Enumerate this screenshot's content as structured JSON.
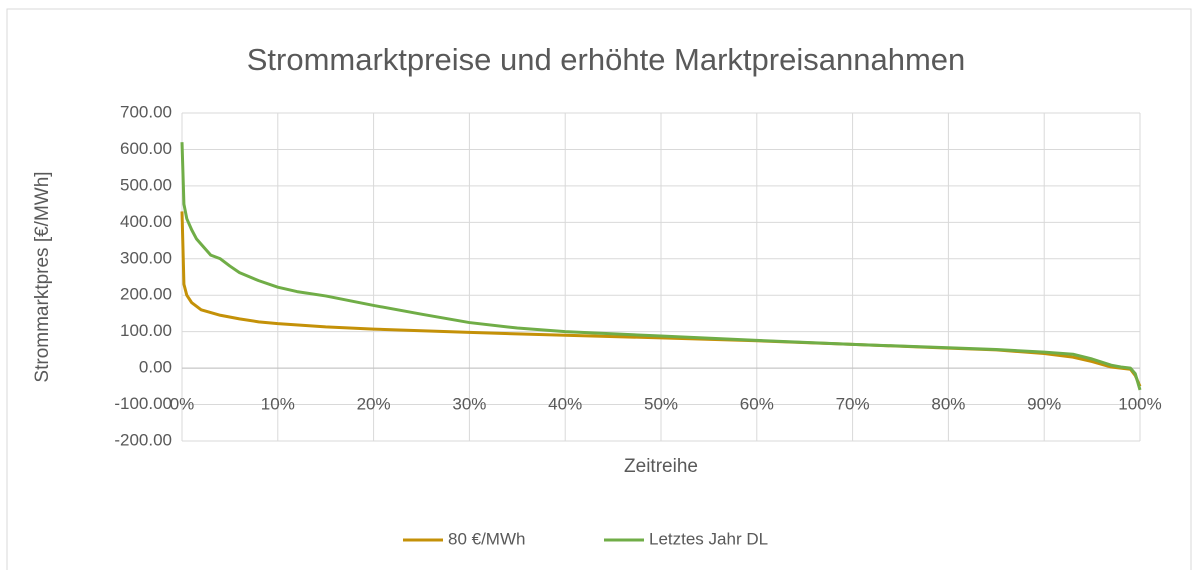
{
  "chart_data": {
    "type": "line",
    "title": "Strommarktpreise und erhöhte Marktpreisannahmen",
    "x_label": "Zeitreihe",
    "y_label": "Strommarktpres [€/MWh]",
    "xlim": [
      0,
      100
    ],
    "xticks": [
      {
        "value": 0,
        "label": "0%"
      },
      {
        "value": 10,
        "label": "10%"
      },
      {
        "value": 20,
        "label": "20%"
      },
      {
        "value": 30,
        "label": "30%"
      },
      {
        "value": 40,
        "label": "40%"
      },
      {
        "value": 50,
        "label": "50%"
      },
      {
        "value": 60,
        "label": "60%"
      },
      {
        "value": 70,
        "label": "70%"
      },
      {
        "value": 80,
        "label": "80%"
      },
      {
        "value": 90,
        "label": "90%"
      },
      {
        "value": 100,
        "label": "100%"
      }
    ],
    "ylim": [
      -200,
      700
    ],
    "yticks": [
      {
        "value": -200,
        "label": "-200.00"
      },
      {
        "value": -100,
        "label": "-100.00"
      },
      {
        "value": 0,
        "label": "0.00"
      },
      {
        "value": 100,
        "label": "100.00"
      },
      {
        "value": 200,
        "label": "200.00"
      },
      {
        "value": 300,
        "label": "300.00"
      },
      {
        "value": 400,
        "label": "400.00"
      },
      {
        "value": 500,
        "label": "500.00"
      },
      {
        "value": 600,
        "label": "600.00"
      },
      {
        "value": 700,
        "label": "700.00"
      }
    ],
    "grid": true,
    "legend": "bottom",
    "series": [
      {
        "name": "80 €/MWh",
        "color": "#c49108",
        "x": [
          0,
          0.2,
          0.5,
          1,
          2,
          4,
          6,
          8,
          10,
          15,
          20,
          30,
          40,
          50,
          60,
          70,
          80,
          85,
          90,
          93,
          95,
          97,
          98,
          99,
          99.5,
          100
        ],
        "values": [
          430,
          230,
          200,
          180,
          160,
          145,
          135,
          127,
          122,
          113,
          107,
          98,
          90,
          83,
          75,
          65,
          55,
          50,
          40,
          30,
          18,
          3,
          0,
          -3,
          -20,
          -50
        ]
      },
      {
        "name": "Letztes Jahr DL",
        "color": "#70ad47",
        "x": [
          0,
          0.2,
          0.5,
          1,
          1.5,
          2,
          3,
          4,
          5,
          6,
          8,
          10,
          12,
          15,
          20,
          25,
          30,
          35,
          40,
          50,
          60,
          70,
          80,
          85,
          90,
          93,
          95,
          97,
          98,
          99,
          99.5,
          100
        ],
        "values": [
          620,
          450,
          410,
          380,
          355,
          340,
          310,
          300,
          280,
          262,
          240,
          222,
          210,
          198,
          172,
          148,
          125,
          110,
          100,
          88,
          76,
          65,
          56,
          51,
          44,
          38,
          25,
          8,
          3,
          0,
          -15,
          -60
        ]
      }
    ]
  }
}
